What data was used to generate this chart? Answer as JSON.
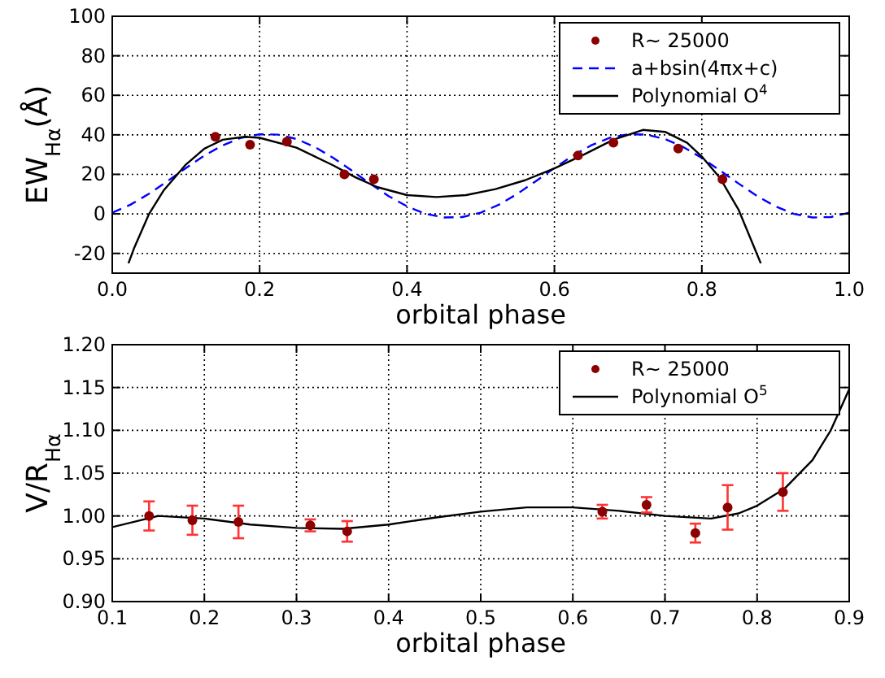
{
  "chart_data": [
    {
      "type": "scatter",
      "xlabel": "orbital phase",
      "ylabel": "EW$_{Hα}$(Å)",
      "xlim": [
        0,
        1
      ],
      "ylim": [
        -30,
        100
      ],
      "xticks": [
        {
          "value": 0,
          "label": "0.0"
        },
        0.2,
        0.4,
        0.6,
        0.8,
        {
          "value": 1,
          "label": "1.0"
        }
      ],
      "yticks": [
        -20,
        0,
        20,
        40,
        60,
        80,
        100
      ],
      "grid": true,
      "legend": "top right",
      "series": [
        {
          "name": "R∼ 25000",
          "type": "scatter",
          "marker": "circle",
          "color": "#8b0000",
          "x": [
            0.14,
            0.187,
            0.237,
            0.315,
            0.355,
            0.632,
            0.68,
            0.768,
            0.828
          ],
          "values": [
            39,
            35,
            36.5,
            20,
            17.5,
            29.5,
            36,
            33,
            17.5
          ]
        },
        {
          "name": "a+bsin(4πx+c)",
          "type": "line",
          "line_style": "dashed",
          "color": "#0000ff",
          "x": [
            0,
            0.025,
            0.05,
            0.075,
            0.1,
            0.125,
            0.15,
            0.175,
            0.2,
            0.225,
            0.25,
            0.275,
            0.3,
            0.325,
            0.35,
            0.375,
            0.4,
            0.425,
            0.45,
            0.475,
            0.5,
            0.525,
            0.55,
            0.575,
            0.6,
            0.625,
            0.65,
            0.675,
            0.7,
            0.725,
            0.75,
            0.775,
            0.8,
            0.825,
            0.85,
            0.875,
            0.9,
            0.925,
            0.95,
            0.975,
            1
          ],
          "values": [
            0.6,
            4.7,
            10.2,
            16.6,
            23.2,
            29.5,
            34.7,
            38.5,
            40.3,
            40.1,
            37.9,
            33.8,
            28.3,
            21.9,
            15.3,
            9,
            3.8,
            0,
            -1.8,
            -1.6,
            0.6,
            4.7,
            10.2,
            16.6,
            23.2,
            29.5,
            34.7,
            38.5,
            40.3,
            40.1,
            37.9,
            33.8,
            28.3,
            21.9,
            15.3,
            9,
            3.8,
            0,
            -1.8,
            -1.6,
            0.6
          ]
        },
        {
          "name": "Polynomial O$^{4}$",
          "type": "line",
          "line_style": "solid",
          "color": "#000000",
          "x": [
            0.022,
            0.03,
            0.05,
            0.07,
            0.1,
            0.125,
            0.15,
            0.18,
            0.2,
            0.25,
            0.3,
            0.33,
            0.36,
            0.4,
            0.44,
            0.48,
            0.52,
            0.56,
            0.6,
            0.64,
            0.68,
            0.72,
            0.75,
            0.78,
            0.8,
            0.825,
            0.85,
            0.87,
            0.88
          ],
          "values": [
            -25,
            -17,
            0,
            12,
            25,
            33,
            37.5,
            39,
            38.5,
            33.5,
            24.5,
            18.5,
            13.5,
            9.5,
            8.5,
            9.5,
            12.5,
            17,
            23,
            30,
            37.5,
            42.5,
            41.5,
            36,
            29,
            18,
            2,
            -16,
            -25
          ]
        }
      ]
    },
    {
      "type": "scatter",
      "xlabel": "orbital phase",
      "ylabel": "V/R$_{Hα}$",
      "xlim": [
        0.1,
        0.9
      ],
      "ylim": [
        0.9,
        1.2
      ],
      "xticks": [
        0.1,
        0.2,
        0.3,
        0.4,
        0.5,
        0.6,
        0.7,
        0.8,
        0.9
      ],
      "yticks": [
        {
          "value": 0.9,
          "label": "0.90"
        },
        0.95,
        {
          "value": 1,
          "label": "1.00"
        },
        1.05,
        {
          "value": 1.1,
          "label": "1.10"
        },
        1.15,
        {
          "value": 1.2,
          "label": "1.20"
        }
      ],
      "grid": true,
      "legend": "top right",
      "series": [
        {
          "name": "R∼ 25000",
          "type": "scatter",
          "marker": "circle",
          "color": "#8b0000",
          "x": [
            0.14,
            0.187,
            0.237,
            0.315,
            0.355,
            0.632,
            0.68,
            0.733,
            0.768,
            0.828
          ],
          "values": [
            1,
            0.995,
            0.993,
            0.989,
            0.982,
            1.005,
            1.013,
            0.98,
            1.01,
            1.028
          ],
          "errors": [
            0.017,
            0.017,
            0.019,
            0.007,
            0.012,
            0.008,
            0.009,
            0.011,
            0.026,
            0.022
          ]
        },
        {
          "name": "Polynomial O$^{5}$",
          "type": "line",
          "line_style": "solid",
          "color": "#000000",
          "x": [
            0.1,
            0.15,
            0.2,
            0.25,
            0.3,
            0.35,
            0.4,
            0.45,
            0.5,
            0.55,
            0.6,
            0.65,
            0.7,
            0.75,
            0.78,
            0.8,
            0.83,
            0.86,
            0.88,
            0.9
          ],
          "values": [
            0.987,
            1,
            0.997,
            0.99,
            0.986,
            0.985,
            0.99,
            0.998,
            1.005,
            1.01,
            1.01,
            1.006,
            1,
            0.997,
            1.003,
            1.012,
            1.032,
            1.065,
            1.1,
            1.148
          ]
        }
      ]
    }
  ]
}
